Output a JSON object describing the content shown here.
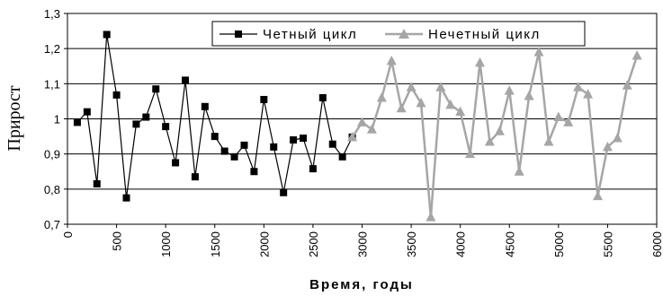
{
  "chart_data": {
    "type": "line",
    "xlabel": "Время, годы",
    "ylabel": "Прирост",
    "xlim": [
      0,
      6000
    ],
    "ylim": [
      0.7,
      1.3
    ],
    "x_ticks": [
      "0",
      "500",
      "1000",
      "1500",
      "2000",
      "2500",
      "3000",
      "3500",
      "4000",
      "4500",
      "5000",
      "5500",
      "6000"
    ],
    "y_ticks": [
      "0,7",
      "0,8",
      "0,9",
      "1",
      "1,1",
      "1,2",
      "1,3"
    ],
    "grid": "horizontal",
    "legend_position": "top-right",
    "series": [
      {
        "name": "Четный цикл",
        "color": "#000000",
        "marker": "square",
        "points": [
          [
            100,
            0.99
          ],
          [
            200,
            1.02
          ],
          [
            300,
            0.815
          ],
          [
            400,
            1.24
          ],
          [
            500,
            1.068
          ],
          [
            600,
            0.775
          ],
          [
            700,
            0.985
          ],
          [
            800,
            1.005
          ],
          [
            900,
            1.085
          ],
          [
            1000,
            0.978
          ],
          [
            1100,
            0.875
          ],
          [
            1200,
            1.11
          ],
          [
            1300,
            0.835
          ],
          [
            1400,
            1.035
          ],
          [
            1500,
            0.95
          ],
          [
            1600,
            0.908
          ],
          [
            1700,
            0.892
          ],
          [
            1800,
            0.925
          ],
          [
            1900,
            0.85
          ],
          [
            2000,
            1.055
          ],
          [
            2100,
            0.92
          ],
          [
            2200,
            0.79
          ],
          [
            2300,
            0.94
          ],
          [
            2400,
            0.945
          ],
          [
            2500,
            0.858
          ],
          [
            2600,
            1.06
          ],
          [
            2700,
            0.928
          ],
          [
            2800,
            0.892
          ],
          [
            2900,
            0.948
          ]
        ]
      },
      {
        "name": "Нечетный цикл",
        "color": "#a6a6a6",
        "marker": "triangle",
        "points": [
          [
            2900,
            0.948
          ],
          [
            3000,
            0.99
          ],
          [
            3100,
            0.97
          ],
          [
            3200,
            1.06
          ],
          [
            3300,
            1.165
          ],
          [
            3400,
            1.03
          ],
          [
            3500,
            1.09
          ],
          [
            3600,
            1.045
          ],
          [
            3700,
            0.72
          ],
          [
            3800,
            1.09
          ],
          [
            3900,
            1.04
          ],
          [
            4000,
            1.02
          ],
          [
            4100,
            0.9
          ],
          [
            4200,
            1.16
          ],
          [
            4300,
            0.935
          ],
          [
            4400,
            0.965
          ],
          [
            4500,
            1.08
          ],
          [
            4600,
            0.85
          ],
          [
            4700,
            1.065
          ],
          [
            4800,
            1.19
          ],
          [
            4900,
            0.935
          ],
          [
            5000,
            1.005
          ],
          [
            5100,
            0.99
          ],
          [
            5200,
            1.09
          ],
          [
            5300,
            1.07
          ],
          [
            5400,
            0.78
          ],
          [
            5500,
            0.92
          ],
          [
            5600,
            0.945
          ],
          [
            5700,
            1.095
          ],
          [
            5800,
            1.18
          ]
        ]
      }
    ]
  }
}
